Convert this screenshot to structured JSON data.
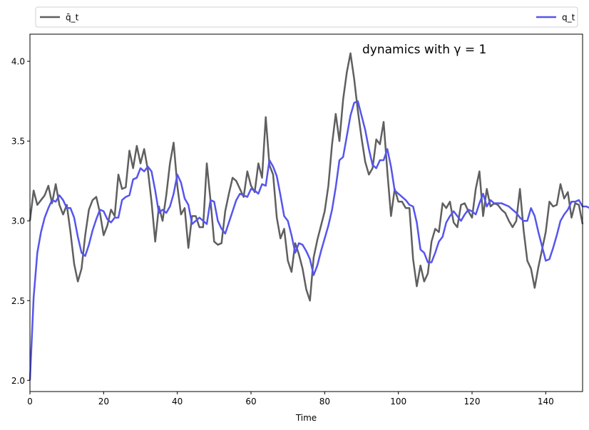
{
  "chart_data": {
    "type": "line",
    "title": "",
    "annotation": "dynamics with γ = 1",
    "xlabel": "Time",
    "ylabel": "",
    "xlim": [
      0,
      150
    ],
    "ylim": [
      1.93,
      4.17
    ],
    "xticks": [
      0,
      20,
      40,
      60,
      80,
      100,
      120,
      140
    ],
    "yticks": [
      2.0,
      2.5,
      3.0,
      3.5,
      4.0
    ],
    "ytick_labels": [
      "2.0",
      "2.5",
      "3.0",
      "3.5",
      "4.0"
    ],
    "grid": false,
    "legend_placement": "above plot, spanning full width",
    "series": [
      {
        "name": "q̄_t",
        "color": "#5f5f5f",
        "values": [
          3.0,
          3.19,
          3.1,
          3.13,
          3.16,
          3.22,
          3.11,
          3.23,
          3.1,
          3.04,
          3.1,
          2.93,
          2.73,
          2.62,
          2.7,
          2.91,
          3.07,
          3.13,
          3.15,
          3.05,
          2.91,
          2.97,
          3.07,
          3.03,
          3.29,
          3.2,
          3.21,
          3.44,
          3.33,
          3.47,
          3.36,
          3.45,
          3.32,
          3.12,
          2.87,
          3.09,
          3.0,
          3.16,
          3.36,
          3.49,
          3.22,
          3.04,
          3.08,
          2.83,
          3.03,
          3.03,
          2.96,
          2.96,
          3.36,
          3.13,
          2.87,
          2.85,
          2.86,
          3.06,
          3.17,
          3.27,
          3.25,
          3.2,
          3.15,
          3.31,
          3.22,
          3.18,
          3.36,
          3.27,
          3.65,
          3.35,
          3.29,
          3.02,
          2.89,
          2.95,
          2.75,
          2.68,
          2.86,
          2.79,
          2.7,
          2.57,
          2.5,
          2.77,
          2.88,
          2.97,
          3.06,
          3.22,
          3.48,
          3.67,
          3.5,
          3.76,
          3.93,
          4.05,
          3.89,
          3.69,
          3.52,
          3.37,
          3.29,
          3.33,
          3.51,
          3.48,
          3.62,
          3.31,
          3.03,
          3.2,
          3.12,
          3.12,
          3.08,
          3.08,
          2.76,
          2.59,
          2.72,
          2.62,
          2.67,
          2.87,
          2.95,
          2.93,
          3.11,
          3.08,
          3.12,
          2.99,
          2.96,
          3.1,
          3.11,
          3.06,
          3.02,
          3.2,
          3.31,
          3.03,
          3.2,
          3.09,
          3.11,
          3.1,
          3.07,
          3.05,
          3.0,
          2.96,
          3.0,
          3.2,
          2.94,
          2.75,
          2.7,
          2.58,
          2.71,
          2.82,
          2.93,
          3.12,
          3.09,
          3.1,
          3.23,
          3.14,
          3.18,
          3.02,
          3.11,
          3.1,
          2.98
        ]
      },
      {
        "name": "q_t",
        "color": "#5555ee",
        "values": [
          2.0,
          2.52,
          2.8,
          2.93,
          3.02,
          3.08,
          3.13,
          3.12,
          3.16,
          3.13,
          3.08,
          3.08,
          3.02,
          2.9,
          2.8,
          2.78,
          2.85,
          2.94,
          3.01,
          3.07,
          3.06,
          3.01,
          2.99,
          3.02,
          3.02,
          3.13,
          3.15,
          3.16,
          3.26,
          3.27,
          3.33,
          3.31,
          3.34,
          3.31,
          3.19,
          3.05,
          3.07,
          3.05,
          3.09,
          3.17,
          3.29,
          3.24,
          3.14,
          3.1,
          2.98,
          3.0,
          3.02,
          3.0,
          2.98,
          3.13,
          3.12,
          3.0,
          2.95,
          2.92,
          2.99,
          3.06,
          3.13,
          3.17,
          3.16,
          3.15,
          3.2,
          3.19,
          3.17,
          3.23,
          3.22,
          3.38,
          3.34,
          3.28,
          3.16,
          3.03,
          3.0,
          2.91,
          2.8,
          2.86,
          2.85,
          2.81,
          2.76,
          2.66,
          2.72,
          2.81,
          2.89,
          2.97,
          3.07,
          3.21,
          3.38,
          3.4,
          3.53,
          3.66,
          3.74,
          3.75,
          3.66,
          3.57,
          3.45,
          3.35,
          3.33,
          3.38,
          3.38,
          3.45,
          3.34,
          3.19,
          3.17,
          3.15,
          3.13,
          3.1,
          3.09,
          2.99,
          2.82,
          2.8,
          2.74,
          2.74,
          2.8,
          2.87,
          2.9,
          2.99,
          3.03,
          3.06,
          3.03,
          3.0,
          3.04,
          3.07,
          3.06,
          3.04,
          3.11,
          3.17,
          3.09,
          3.13,
          3.11,
          3.11,
          3.11,
          3.1,
          3.09,
          3.07,
          3.05,
          3.02,
          3.0,
          3.0,
          3.08,
          3.03,
          2.93,
          2.84,
          2.75,
          2.76,
          2.83,
          2.91,
          3.0,
          3.04,
          3.07,
          3.12,
          3.12,
          3.13,
          3.09,
          3.09,
          3.08
        ]
      }
    ]
  }
}
